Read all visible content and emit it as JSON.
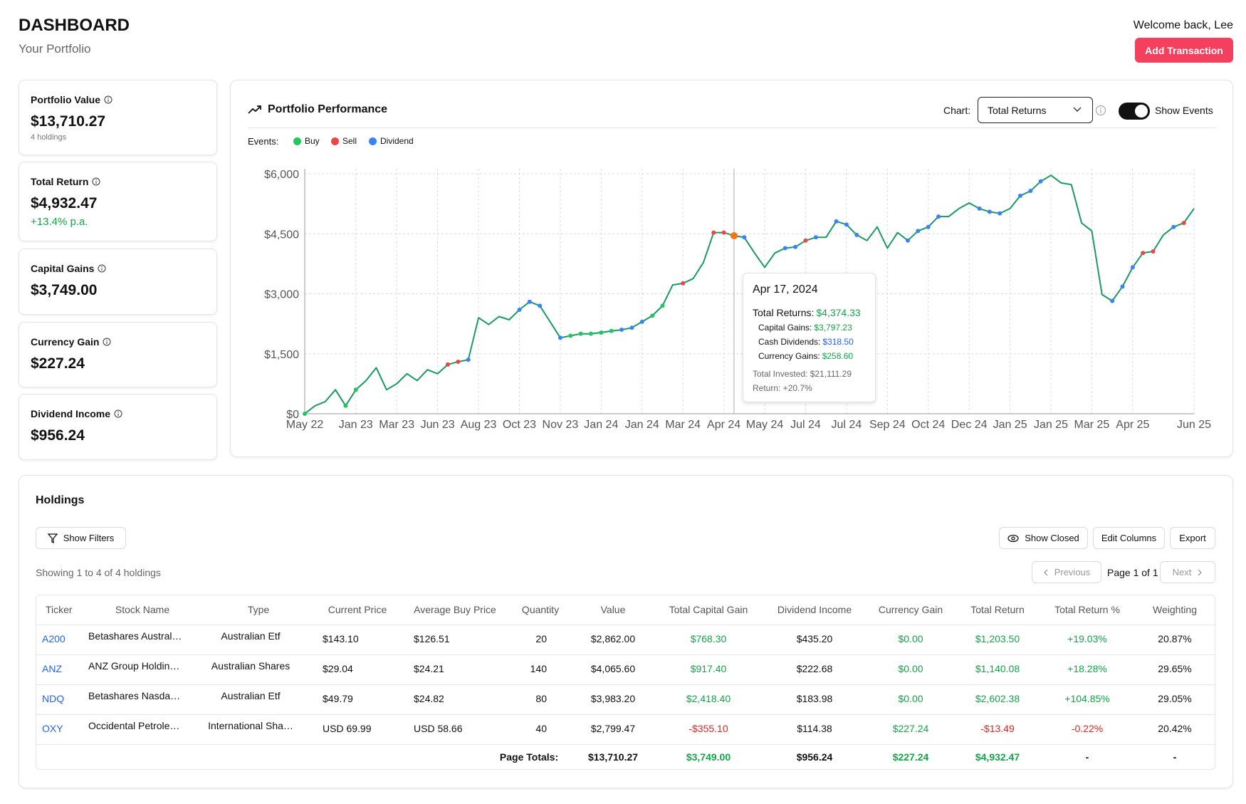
{
  "header": {
    "title": "DASHBOARD",
    "subtitle": "Your Portfolio",
    "welcome": "Welcome back, Lee",
    "button": "Add Transaction"
  },
  "cards": [
    {
      "label": "Portfolio Value",
      "value": "$13,710.27",
      "note": "4 holdings"
    },
    {
      "label": "Total Return",
      "value": "$4,932.47",
      "note": "+13.4% p.a."
    },
    {
      "label": "Capital Gains",
      "value": "$3,749.00"
    },
    {
      "label": "Currency Gain",
      "value": "$227.24"
    },
    {
      "label": "Dividend Income",
      "value": "$956.24"
    }
  ],
  "performance": {
    "title": "Portfolio Performance",
    "chart_label": "Chart:",
    "toggle": "Show Events",
    "events_label": "Events:"
  },
  "tooltip": {
    "date": "Apr 17, 2024",
    "rows": [
      {
        "label": "Total Returns:",
        "value": "$4,374.33"
      },
      {
        "label": "Capital Gains:",
        "value": "$3,797.23"
      },
      {
        "label": "Cash Dividends:",
        "value": "$318.50"
      },
      {
        "label": "Currency Gains:",
        "value": "$258.60"
      }
    ],
    "invested": "Total Invested: $21,111.29",
    "return": "Return: +20.7%"
  },
  "chart_data": {
    "type": "line",
    "categories": [
      "May 22",
      null,
      null,
      null,
      null,
      "Jan 23",
      null,
      null,
      null,
      "Mar 23",
      null,
      null,
      null,
      "Jun 23",
      null,
      null,
      null,
      "Aug 23",
      null,
      null,
      null,
      "Oct 23",
      null,
      null,
      null,
      "Nov 23",
      null,
      null,
      null,
      "Jan 24",
      null,
      null,
      null,
      "Jan 24",
      null,
      null,
      null,
      "Mar 24",
      null,
      null,
      null,
      "Apr 24",
      null,
      null,
      null,
      "May 24",
      null,
      null,
      null,
      "Jul 24",
      null,
      null,
      null,
      "Jul 24",
      null,
      null,
      null,
      "Sep 24",
      null,
      null,
      null,
      "Oct 24",
      null,
      null,
      null,
      "Dec 24",
      null,
      null,
      null,
      "Jan 25",
      null,
      null,
      null,
      "Jan 25",
      null,
      null,
      null,
      "Mar 25",
      null,
      null,
      null,
      "Apr 25",
      null,
      null,
      null,
      null,
      null,
      "Jun 25"
    ],
    "series": [
      {
        "name": "Total Returns",
        "color": "#1a9a62",
        "values": [
          0,
          200,
          300,
          600,
          200,
          600,
          830,
          1150,
          600,
          750,
          1000,
          830,
          1100,
          1000,
          1230,
          1300,
          1350,
          2400,
          2230,
          2430,
          2350,
          2600,
          2800,
          2700,
          2300,
          1900,
          1950,
          2000,
          2000,
          2030,
          2070,
          2100,
          2150,
          2300,
          2450,
          2700,
          3220,
          3260,
          3380,
          3780,
          4530,
          4530,
          4450,
          4410,
          4020,
          3660,
          4020,
          4140,
          4170,
          4330,
          4410,
          4410,
          4810,
          4730,
          4470,
          4330,
          4670,
          4140,
          4530,
          4330,
          4570,
          4670,
          4930,
          4930,
          5130,
          5270,
          5130,
          5050,
          5010,
          5130,
          5450,
          5570,
          5810,
          5960,
          5770,
          5730,
          4770,
          4570,
          2980,
          2820,
          3180,
          3660,
          4020,
          4060,
          4470,
          4670,
          4770,
          5130
        ]
      },
      {
        "name": "Buy",
        "color": "#22c55e",
        "values": [
          0,
          null,
          null,
          null,
          200,
          600,
          null,
          null,
          null,
          null,
          null,
          null,
          null,
          null,
          null,
          null,
          null,
          null,
          null,
          null,
          null,
          null,
          null,
          null,
          null,
          null,
          1950,
          2000,
          2000,
          2030,
          2070,
          null,
          null,
          null,
          2450,
          2700,
          null,
          null,
          null,
          null,
          null,
          null,
          null,
          null,
          null,
          null,
          null,
          null,
          null,
          null,
          null,
          null,
          null,
          null,
          null,
          null,
          null,
          null,
          null,
          null,
          null,
          null,
          null,
          null,
          null,
          null,
          null,
          null,
          null,
          null,
          null,
          null,
          null,
          null,
          null,
          null,
          null,
          null,
          null,
          null,
          null,
          null,
          null,
          null,
          null,
          null,
          null,
          null
        ]
      },
      {
        "name": "Sell",
        "color": "#ef4444",
        "values": [
          null,
          null,
          null,
          null,
          null,
          null,
          null,
          null,
          null,
          null,
          null,
          null,
          null,
          null,
          1230,
          1300,
          null,
          null,
          null,
          null,
          null,
          null,
          null,
          null,
          null,
          null,
          null,
          null,
          null,
          null,
          null,
          null,
          null,
          null,
          null,
          null,
          null,
          3260,
          null,
          null,
          4530,
          4530,
          null,
          null,
          null,
          null,
          null,
          null,
          null,
          4330,
          null,
          null,
          null,
          null,
          null,
          null,
          null,
          null,
          null,
          null,
          null,
          null,
          null,
          null,
          null,
          null,
          null,
          null,
          null,
          null,
          null,
          null,
          null,
          null,
          null,
          null,
          null,
          null,
          null,
          null,
          null,
          null,
          4020,
          4060,
          null,
          null,
          4770,
          null
        ]
      },
      {
        "name": "Dividend",
        "color": "#3b82f6",
        "values": [
          null,
          null,
          null,
          null,
          null,
          null,
          null,
          null,
          null,
          null,
          null,
          null,
          null,
          null,
          null,
          null,
          1350,
          null,
          null,
          null,
          null,
          2600,
          2800,
          2700,
          null,
          1900,
          null,
          null,
          null,
          null,
          null,
          2100,
          2150,
          2300,
          null,
          null,
          null,
          null,
          null,
          null,
          null,
          null,
          4450,
          4410,
          null,
          null,
          null,
          4140,
          4170,
          null,
          4410,
          null,
          4810,
          4730,
          4470,
          null,
          null,
          null,
          null,
          4330,
          4570,
          4670,
          4930,
          null,
          null,
          null,
          5130,
          5050,
          5010,
          null,
          5450,
          5570,
          5810,
          null,
          null,
          null,
          null,
          null,
          null,
          2820,
          3180,
          3660,
          null,
          null,
          null,
          4670,
          null,
          null
        ]
      }
    ],
    "ylim": [
      0,
      6000
    ],
    "yticks": [
      {
        "value": 0,
        "label": "$0"
      },
      {
        "value": 1500,
        "label": "$1,500"
      },
      {
        "value": 3000,
        "label": "$3,000"
      },
      {
        "value": 4500,
        "label": "$4,500"
      },
      {
        "value": 6000,
        "label": "$6,000"
      }
    ],
    "grid": true
  },
  "holdings": {
    "title": "Holdings",
    "show_filters": "Show Filters",
    "show_closed": "Show Closed",
    "edit_columns": "Edit Columns",
    "export": "Export",
    "showing": "Showing 1 to 4 of 4 holdings",
    "previous": "Previous",
    "page": "Page 1 of 1",
    "next": "Next",
    "columns": [
      "Ticker",
      "Stock Name",
      "Type",
      "Current Price",
      "Average Buy Price",
      "Quantity",
      "Value",
      "Total Capital Gain",
      "Dividend Income",
      "Currency Gain",
      "Total Return",
      "Total Return %",
      "Weighting"
    ],
    "rows": [
      [
        "A200",
        "Betashares Austral…",
        "Australian Etf",
        "$143.10",
        "$126.51",
        "20",
        "$2,862.00",
        "$768.30",
        "$435.20",
        "$0.00",
        "$1,203.50",
        "+19.03%",
        "20.87%"
      ],
      [
        "ANZ",
        "ANZ Group Holdin…",
        "Australian Shares",
        "$29.04",
        "$24.21",
        "140",
        "$4,065.60",
        "$917.40",
        "$222.68",
        "$0.00",
        "$1,140.08",
        "+18.28%",
        "29.65%"
      ],
      [
        "NDQ",
        "Betashares Nasda…",
        "Australian Etf",
        "$49.79",
        "$24.82",
        "80",
        "$3,983.20",
        "$2,418.40",
        "$183.98",
        "$0.00",
        "$2,602.38",
        "+104.85%",
        "29.05%"
      ],
      [
        "OXY",
        "Occidental Petrole…",
        "International Sha…",
        "USD 69.99",
        "USD 58.66",
        "40",
        "$2,799.47",
        "-$355.10",
        "$114.38",
        "$227.24",
        "-$13.49",
        "-0.22%",
        "20.42%"
      ]
    ],
    "totals_label": "Page Totals:",
    "totals": [
      "$13,710.27",
      "$3,749.00",
      "$956.24",
      "$227.24",
      "$4,932.47",
      "-",
      "-"
    ]
  }
}
